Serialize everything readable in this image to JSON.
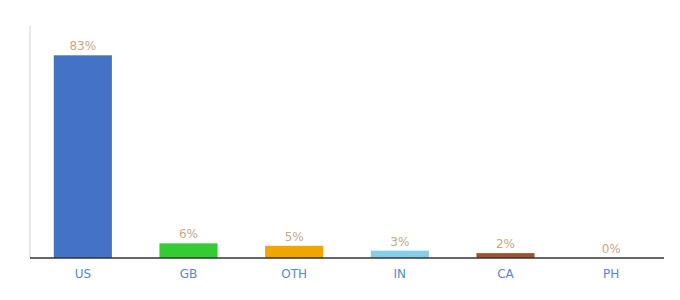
{
  "chart_data": {
    "type": "bar",
    "categories": [
      "US",
      "GB",
      "OTH",
      "IN",
      "CA",
      "PH"
    ],
    "values": [
      83,
      6,
      5,
      3,
      2,
      0
    ],
    "value_labels": [
      "83%",
      "6%",
      "5%",
      "3%",
      "2%",
      "0%"
    ],
    "data_labels": true,
    "colors": [
      "#4472c4",
      "#33cc33",
      "#f0a500",
      "#87ceeb",
      "#a0522d",
      "#aaaaaa"
    ],
    "ylim": [
      0,
      95
    ],
    "grid": false,
    "tick_labels": "x"
  }
}
